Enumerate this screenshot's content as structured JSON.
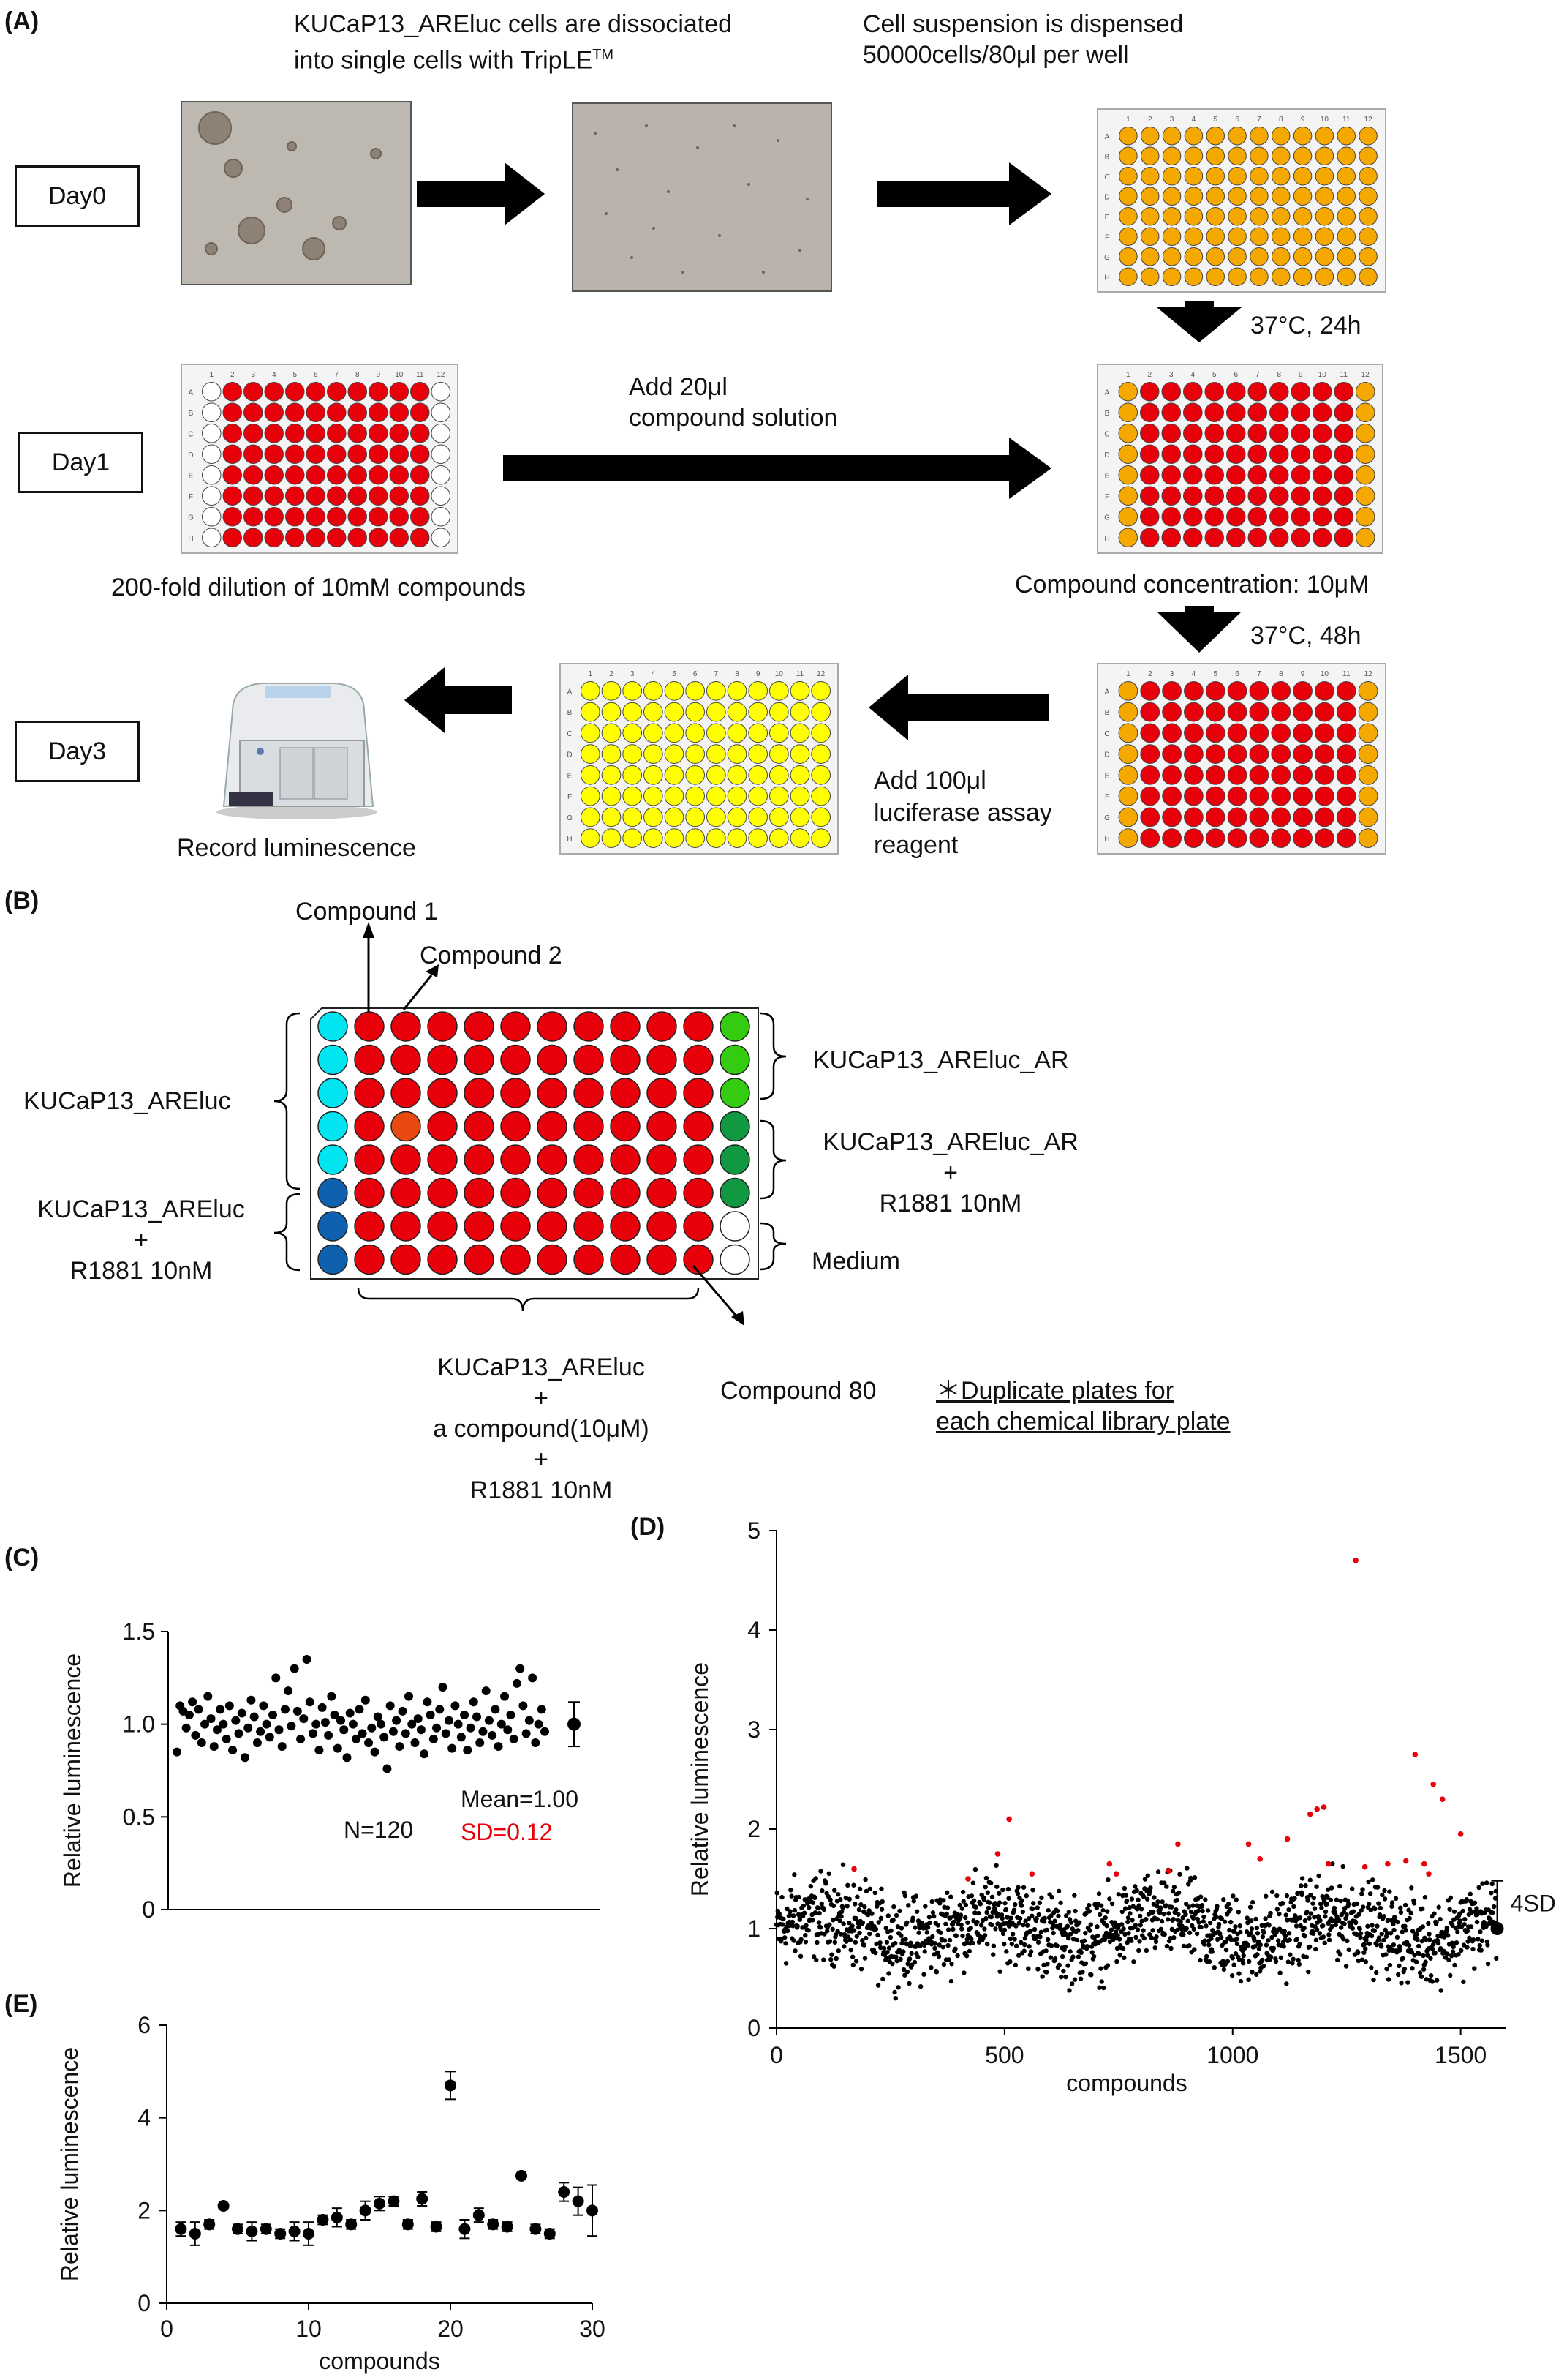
{
  "panel_labels": {
    "a": "(A)",
    "b": "(B)",
    "c": "(C)",
    "d": "(D)",
    "e": "(E)"
  },
  "panel_a": {
    "days": [
      "Day0",
      "Day1",
      "Day3"
    ],
    "step1_line1": "KUCaP13_AREluc cells are dissociated",
    "step1_line2": "into single cells with TripLE",
    "step1_sup": "TM",
    "step2_line1": "Cell suspension is dispensed",
    "step2_line2": "50000cells/80μl per well",
    "incubate1": "37°C, 24h",
    "add_compound_line1": "Add  20μl",
    "add_compound_line2": "compound solution",
    "dilution": "200-fold dilution of 10mM compounds",
    "concentration": "Compound concentration: 10μM",
    "incubate2": "37°C, 48h",
    "add_reagent_line1": "Add  100μl",
    "add_reagent_line2": "luciferase assay",
    "add_reagent_line3": "reagent",
    "record": "Record luminescence",
    "plate_cols": [
      "1",
      "2",
      "3",
      "4",
      "5",
      "6",
      "7",
      "8",
      "9",
      "10",
      "11",
      "12"
    ],
    "plate_rows": [
      "A",
      "B",
      "C",
      "D",
      "E",
      "F",
      "G",
      "H"
    ],
    "colors": {
      "yellow": "#f5a900",
      "red": "#e8000b",
      "pale_yellow": "#ffff00"
    }
  },
  "panel_b": {
    "compound1": "Compound 1",
    "compound2": "Compound 2",
    "compound80": "Compound 80",
    "left_top": "KUCaP13_AREluc",
    "left_bottom_line1": "KUCaP13_AREluc",
    "left_bottom_line2": "+",
    "left_bottom_line3": "R1881 10nM",
    "right_top": "KUCaP13_AREluc_AR",
    "right_mid_line1": "KUCaP13_AREluc_AR",
    "right_mid_line2": "+",
    "right_mid_line3": "R1881 10nM",
    "right_bottom": "Medium",
    "bottom_line1": "KUCaP13_AREluc",
    "bottom_line2": "+",
    "bottom_line3": "a compound(10μM)",
    "bottom_line4": "+",
    "bottom_line5": "R1881 10nM",
    "note_line1": "＊Duplicate plates for",
    "note_line2": "each chemical library plate",
    "colors": {
      "cyan": "#00e5f0",
      "blue": "#1060b0",
      "lightgreen": "#33cc11",
      "darkgreen": "#109940",
      "red": "#e8000b",
      "orange": "#e84a10"
    }
  },
  "chart_data": [
    {
      "id": "C",
      "type": "scatter",
      "ylabel": "Relative luminescence",
      "ylim": [
        0,
        1.5
      ],
      "yticks": [
        "0",
        "0.5",
        "1.0",
        "1.5"
      ],
      "n_label": "N=120",
      "mean_label": "Mean=1.00",
      "sd_label": "SD=0.12",
      "summary": {
        "mean": 1.0,
        "sd": 0.12
      },
      "values": [
        0.85,
        1.1,
        1.07,
        0.98,
        1.05,
        1.12,
        0.94,
        1.08,
        0.9,
        1.0,
        1.15,
        1.03,
        0.88,
        0.97,
        1.08,
        1.0,
        0.92,
        1.1,
        0.86,
        1.02,
        0.95,
        1.06,
        0.82,
        0.98,
        1.13,
        1.04,
        0.9,
        0.96,
        1.1,
        1.0,
        0.93,
        1.05,
        1.25,
        0.97,
        0.88,
        1.08,
        1.18,
        0.99,
        1.3,
        1.07,
        0.92,
        1.03,
        1.35,
        1.12,
        0.95,
        1.0,
        0.86,
        1.09,
        1.01,
        0.94,
        1.15,
        1.05,
        0.87,
        1.02,
        0.97,
        0.82,
        1.06,
        1.0,
        0.92,
        1.08,
        0.95,
        1.13,
        0.9,
        0.98,
        0.85,
        1.04,
        1.0,
        0.93,
        0.76,
        1.1,
        0.96,
        1.02,
        0.88,
        1.07,
        0.95,
        1.15,
        1.0,
        0.9,
        1.03,
        0.97,
        0.84,
        1.12,
        1.05,
        0.92,
        0.98,
        1.08,
        1.2,
        0.95,
        1.02,
        0.87,
        1.1,
        1.0,
        0.93,
        1.05,
        0.86,
        0.98,
        1.12,
        1.04,
        0.9,
        0.96,
        1.18,
        1.02,
        0.94,
        1.08,
        0.88,
        1.0,
        1.15,
        0.97,
        1.05,
        0.92,
        1.22,
        1.3,
        1.1,
        0.95,
        1.02,
        1.25,
        0.9,
        1.0,
        1.08,
        0.96
      ]
    },
    {
      "id": "D",
      "type": "scatter",
      "xlabel": "compounds",
      "ylabel": "Relative luminescence",
      "xlim": [
        0,
        1600
      ],
      "ylim": [
        0,
        5
      ],
      "xticks": [
        "0",
        "500",
        "1000",
        "1500"
      ],
      "yticks": [
        "0",
        "1",
        "2",
        "3",
        "4",
        "5"
      ],
      "threshold_label": "4SD",
      "n_points": 1580,
      "baseline_mean": 1.0,
      "baseline_sd": 0.12,
      "hits": [
        {
          "x": 170,
          "y": 1.6
        },
        {
          "x": 420,
          "y": 1.5
        },
        {
          "x": 485,
          "y": 1.75
        },
        {
          "x": 510,
          "y": 2.1
        },
        {
          "x": 560,
          "y": 1.55
        },
        {
          "x": 730,
          "y": 1.65
        },
        {
          "x": 745,
          "y": 1.55
        },
        {
          "x": 860,
          "y": 1.58
        },
        {
          "x": 880,
          "y": 1.85
        },
        {
          "x": 1035,
          "y": 1.85
        },
        {
          "x": 1060,
          "y": 1.7
        },
        {
          "x": 1120,
          "y": 1.9
        },
        {
          "x": 1170,
          "y": 2.15
        },
        {
          "x": 1185,
          "y": 2.2
        },
        {
          "x": 1200,
          "y": 2.22
        },
        {
          "x": 1210,
          "y": 1.65
        },
        {
          "x": 1270,
          "y": 4.7
        },
        {
          "x": 1290,
          "y": 1.62
        },
        {
          "x": 1340,
          "y": 1.65
        },
        {
          "x": 1380,
          "y": 1.68
        },
        {
          "x": 1400,
          "y": 2.75
        },
        {
          "x": 1420,
          "y": 1.65
        },
        {
          "x": 1440,
          "y": 2.45
        },
        {
          "x": 1460,
          "y": 2.3
        },
        {
          "x": 1500,
          "y": 1.95
        },
        {
          "x": 1430,
          "y": 1.55
        }
      ],
      "control": {
        "x": 1580,
        "y": 1.0,
        "err": 0.48
      },
      "colors": {
        "points": "#000000",
        "hits": "#e8000b"
      }
    },
    {
      "id": "E",
      "type": "scatter",
      "xlabel": "compounds",
      "ylabel": "Relative luminescence",
      "xlim": [
        0,
        30
      ],
      "ylim": [
        0,
        6
      ],
      "xticks": [
        "0",
        "10",
        "20",
        "30"
      ],
      "yticks": [
        "0",
        "2",
        "4",
        "6"
      ],
      "x": [
        1,
        2,
        3,
        4,
        5,
        6,
        7,
        8,
        9,
        10,
        11,
        12,
        13,
        14,
        15,
        16,
        17,
        18,
        19,
        20,
        21,
        22,
        23,
        24,
        25,
        26,
        27,
        28,
        29,
        30
      ],
      "values": [
        1.6,
        1.5,
        1.7,
        2.1,
        1.6,
        1.55,
        1.6,
        1.5,
        1.55,
        1.5,
        1.8,
        1.85,
        1.7,
        2.0,
        2.15,
        2.2,
        1.7,
        2.25,
        1.65,
        4.7,
        1.6,
        1.9,
        1.7,
        1.65,
        2.75,
        1.6,
        1.5,
        2.4,
        2.2,
        2.0
      ],
      "errors": [
        0.15,
        0.25,
        0.1,
        0.05,
        0.1,
        0.2,
        0.1,
        0.1,
        0.2,
        0.25,
        0.1,
        0.2,
        0.1,
        0.2,
        0.15,
        0.1,
        0.1,
        0.15,
        0.1,
        0.3,
        0.2,
        0.15,
        0.1,
        0.1,
        0.05,
        0.1,
        0.1,
        0.2,
        0.3,
        0.55
      ]
    }
  ]
}
